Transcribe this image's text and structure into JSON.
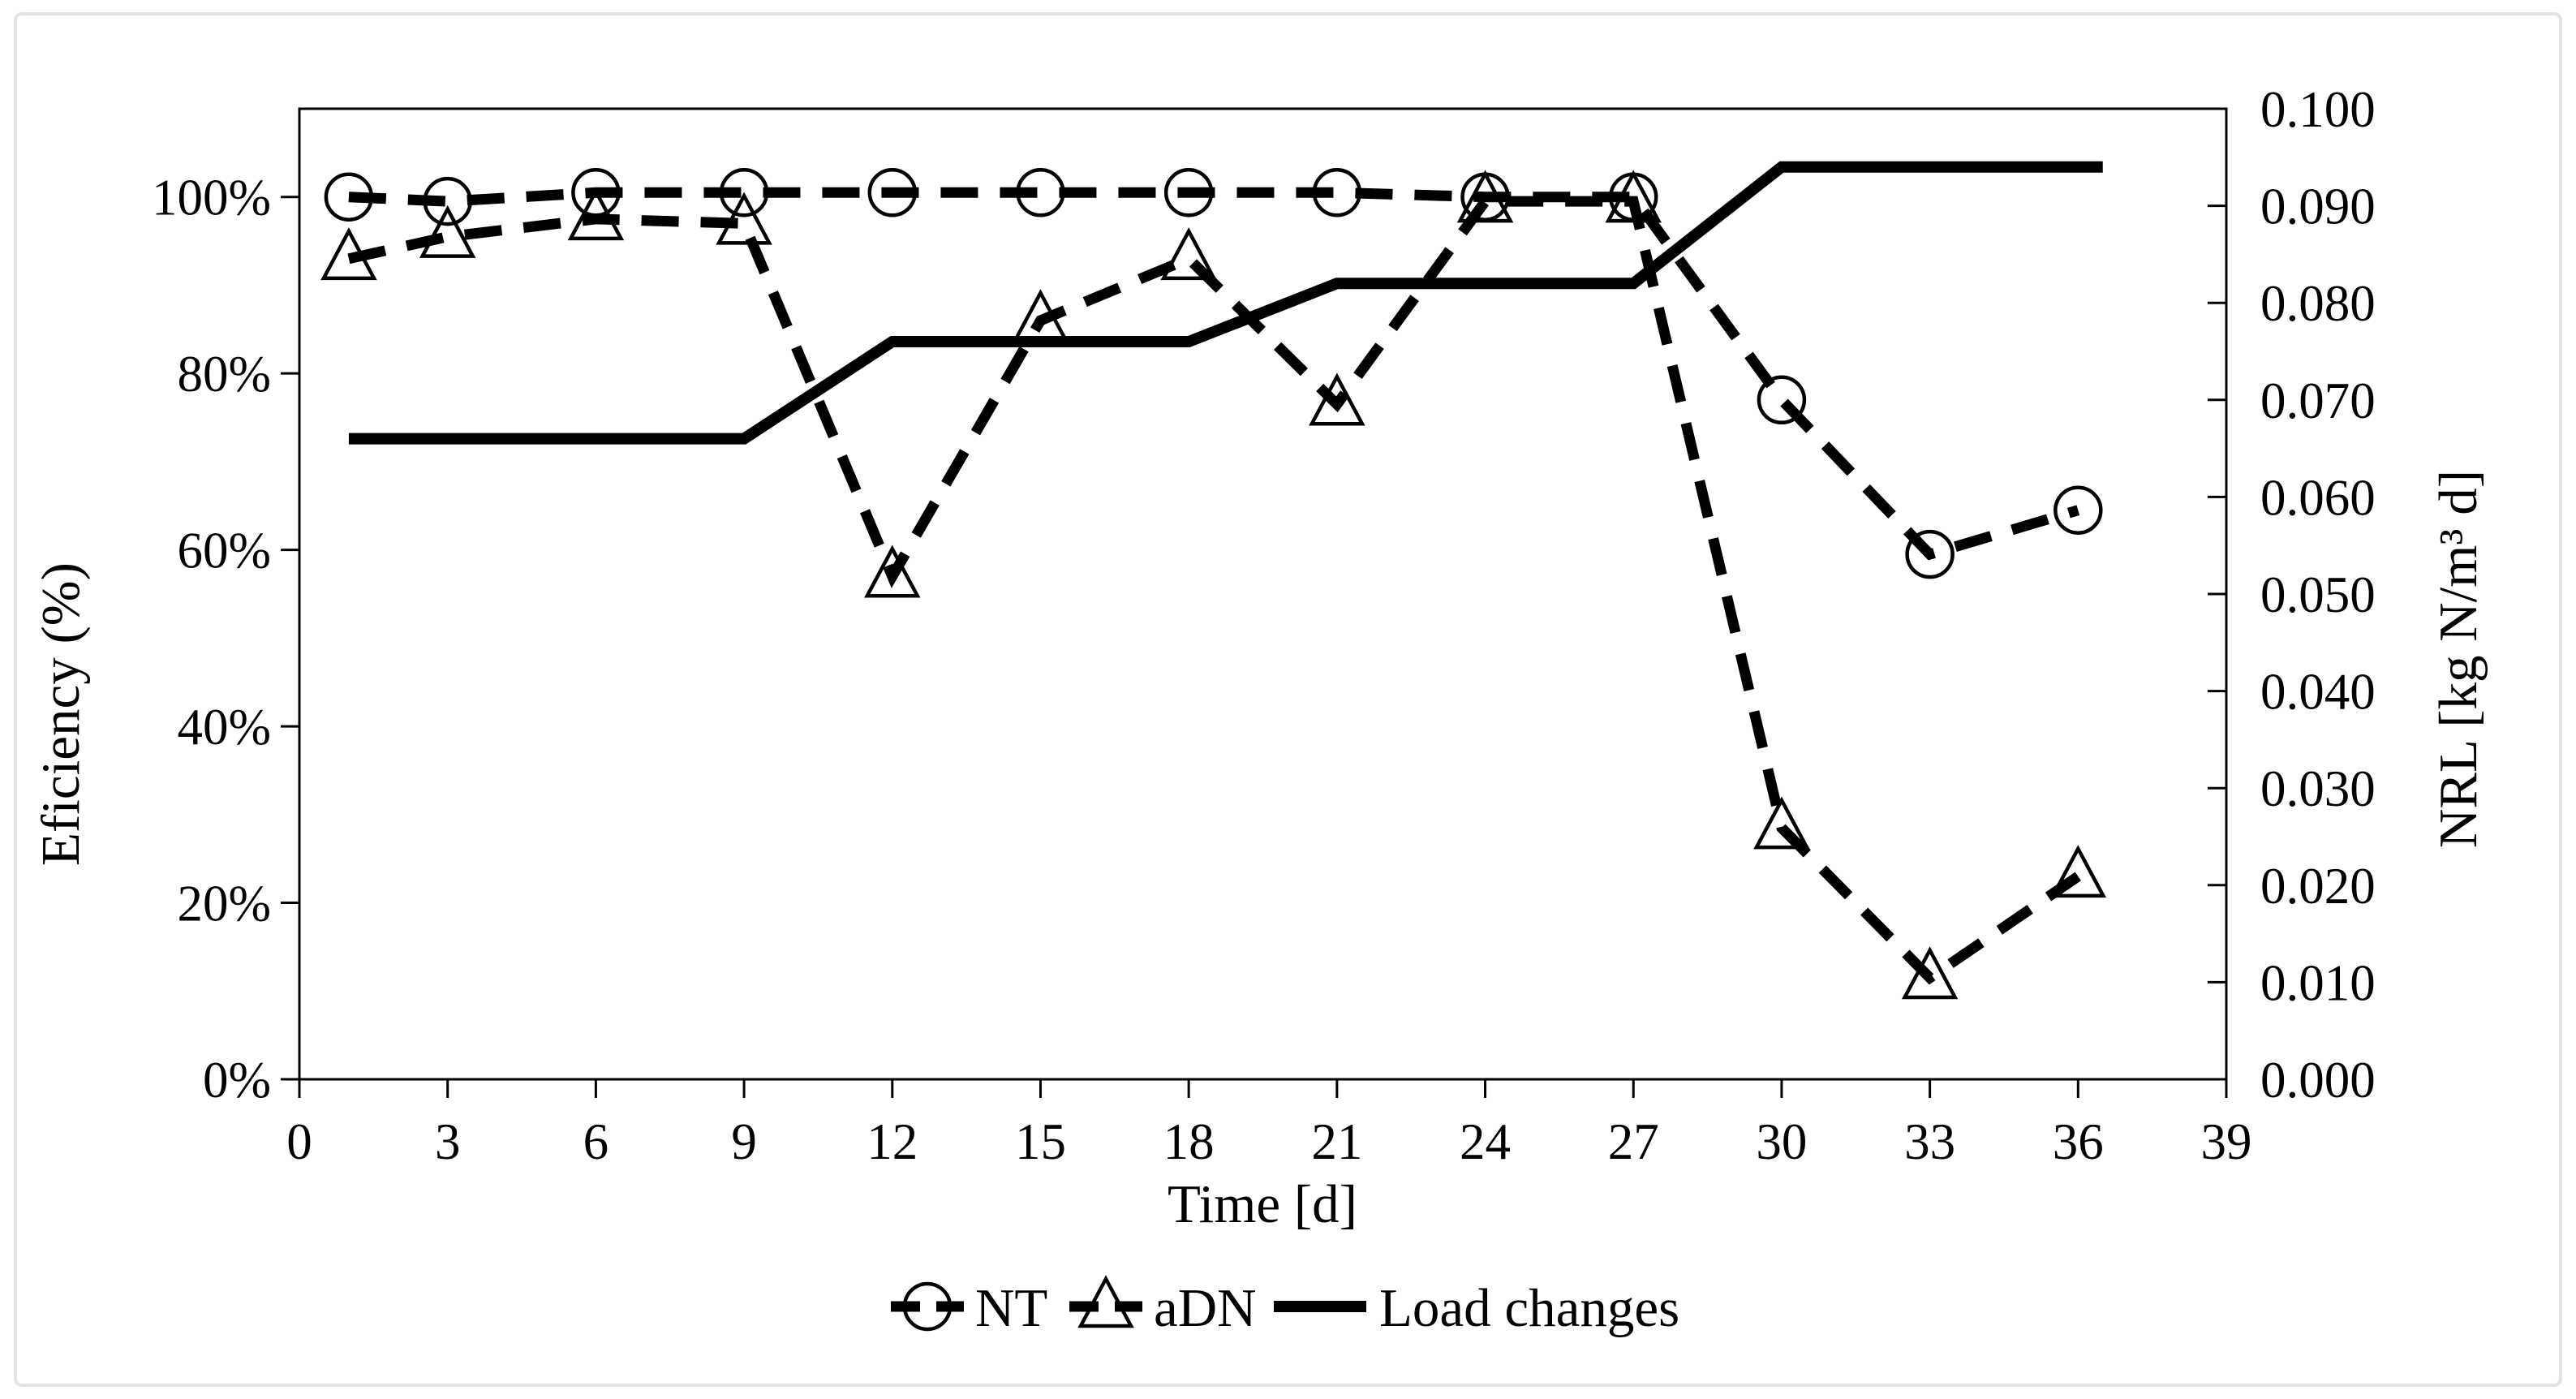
{
  "figure": {
    "background": "#ffffff",
    "frame_border_color": "#e3e3e3",
    "ink_color": "#000000"
  },
  "chart_data": {
    "type": "line",
    "title": "",
    "grid": false,
    "x": [
      1,
      3,
      6,
      9,
      12,
      15,
      18,
      21,
      24,
      27,
      30,
      33,
      36
    ],
    "series": [
      {
        "name": "NT",
        "axis": "left",
        "marker": "circle",
        "line_style": "dashed",
        "values_pct": [
          100,
          99.5,
          100.5,
          100.5,
          100.5,
          100.5,
          100.5,
          100.5,
          100,
          100,
          77,
          59.5,
          64.5
        ]
      },
      {
        "name": "aDN",
        "axis": "left",
        "marker": "triangle",
        "line_style": "dashed",
        "values_pct": [
          93,
          95.5,
          97.5,
          97,
          57,
          86,
          93,
          76.5,
          99.5,
          99.5,
          28.5,
          11.5,
          23
        ]
      },
      {
        "name": "Load changes",
        "axis": "right",
        "marker": "none",
        "line_style": "solid",
        "points": [
          [
            1,
            0.066
          ],
          [
            9,
            0.066
          ],
          [
            12,
            0.076
          ],
          [
            18,
            0.076
          ],
          [
            21,
            0.082
          ],
          [
            27,
            0.082
          ],
          [
            30,
            0.094
          ],
          [
            36.5,
            0.094
          ]
        ]
      }
    ],
    "x_axis": {
      "label": "Time [d]",
      "min": 0,
      "max": 39,
      "tick_step": 3,
      "tick_labels": [
        "0",
        "3",
        "6",
        "9",
        "12",
        "15",
        "18",
        "21",
        "24",
        "27",
        "30",
        "33",
        "36",
        "39"
      ]
    },
    "y_left": {
      "label": "Eficiency (%)",
      "min": 0,
      "max": 110,
      "tick_values": [
        0,
        20,
        40,
        60,
        80,
        100
      ],
      "tick_labels": [
        "0%",
        "20%",
        "40%",
        "60%",
        "80%",
        "100%"
      ]
    },
    "y_right": {
      "label": "NRL [kg N/m³ d]",
      "min": 0,
      "max": 0.1,
      "tick_values": [
        0,
        0.01,
        0.02,
        0.03,
        0.04,
        0.05,
        0.06,
        0.07,
        0.08,
        0.09,
        0.1
      ],
      "tick_labels": [
        "0.000",
        "0.010",
        "0.020",
        "0.030",
        "0.040",
        "0.050",
        "0.060",
        "0.070",
        "0.080",
        "0.090",
        "0.100"
      ]
    },
    "legend": {
      "position": "bottom-center",
      "items": [
        "NT",
        "aDN",
        "Load changes"
      ]
    }
  }
}
